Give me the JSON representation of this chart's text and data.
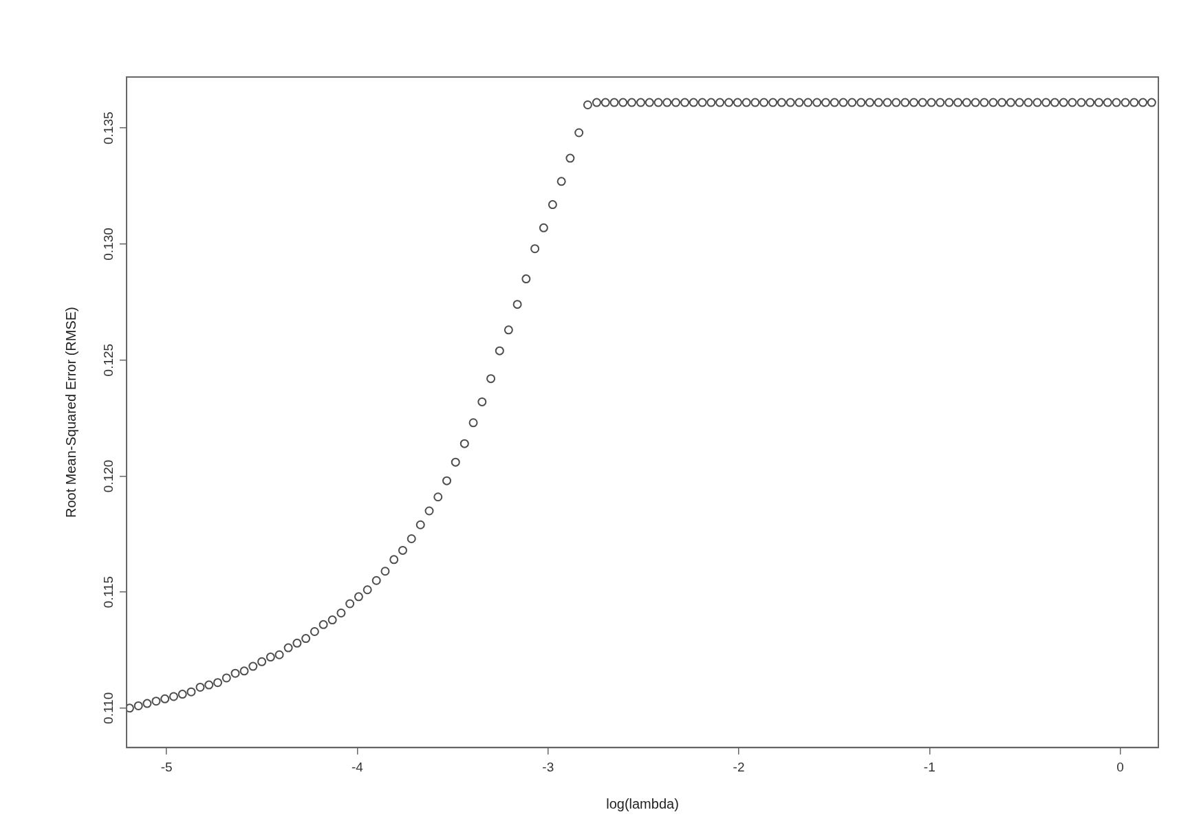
{
  "chart_data": {
    "type": "scatter",
    "xlabel": "log(lambda)",
    "ylabel": "Root Mean-Squared Error (RMSE)",
    "xlim": [
      -5.21,
      0.2
    ],
    "ylim": [
      0.1083,
      0.1372
    ],
    "xticks": [
      -5,
      -4,
      -3,
      -2,
      -1,
      0
    ],
    "yticks": [
      {
        "value": 0.11,
        "label": "0.110"
      },
      0.115,
      {
        "value": 0.12,
        "label": "0.120"
      },
      0.125,
      {
        "value": 0.13,
        "label": "0.130"
      },
      0.135
    ],
    "grid": false,
    "marker": "circle",
    "color": "#4d4d4d",
    "x": [
      -5.194,
      -5.148,
      -5.102,
      -5.055,
      -5.009,
      -4.963,
      -4.917,
      -4.871,
      -4.824,
      -4.778,
      -4.732,
      -4.686,
      -4.64,
      -4.593,
      -4.547,
      -4.501,
      -4.455,
      -4.409,
      -4.362,
      -4.316,
      -4.27,
      -4.224,
      -4.178,
      -4.131,
      -4.085,
      -4.039,
      -3.993,
      -3.947,
      -3.9,
      -3.854,
      -3.808,
      -3.762,
      -3.716,
      -3.669,
      -3.623,
      -3.577,
      -3.531,
      -3.485,
      -3.438,
      -3.392,
      -3.346,
      -3.3,
      -3.254,
      -3.207,
      -3.161,
      -3.115,
      -3.069,
      -3.023,
      -2.976,
      -2.93,
      -2.884,
      -2.838,
      -2.792,
      -2.745,
      -2.699,
      -2.653,
      -2.607,
      -2.561,
      -2.514,
      -2.468,
      -2.422,
      -2.376,
      -2.33,
      -2.283,
      -2.237,
      -2.191,
      -2.145,
      -2.099,
      -2.052,
      -2.006,
      -1.96,
      -1.914,
      -1.868,
      -1.821,
      -1.775,
      -1.729,
      -1.683,
      -1.637,
      -1.59,
      -1.544,
      -1.498,
      -1.452,
      -1.406,
      -1.359,
      -1.313,
      -1.267,
      -1.221,
      -1.175,
      -1.128,
      -1.082,
      -1.036,
      -0.99,
      -0.944,
      -0.897,
      -0.851,
      -0.805,
      -0.759,
      -0.713,
      -0.666,
      -0.62,
      -0.574,
      -0.528,
      -0.482,
      -0.435,
      -0.389,
      -0.343,
      -0.297,
      -0.251,
      -0.204,
      -0.158,
      -0.112,
      -0.066,
      -0.02,
      0.027,
      0.073,
      0.119,
      0.165
    ],
    "values": [
      0.11,
      0.1101,
      0.1102,
      0.1103,
      0.1104,
      0.1105,
      0.1106,
      0.1107,
      0.1109,
      0.111,
      0.1111,
      0.1113,
      0.1115,
      0.1116,
      0.1118,
      0.112,
      0.1122,
      0.1123,
      0.1126,
      0.1128,
      0.113,
      0.1133,
      0.1136,
      0.1138,
      0.1141,
      0.1145,
      0.1148,
      0.1151,
      0.1155,
      0.1159,
      0.1164,
      0.1168,
      0.1173,
      0.1179,
      0.1185,
      0.1191,
      0.1198,
      0.1206,
      0.1214,
      0.1223,
      0.1232,
      0.1242,
      0.1254,
      0.1263,
      0.1274,
      0.1285,
      0.1298,
      0.1307,
      0.1317,
      0.1327,
      0.1337,
      0.1348,
      0.136,
      0.1361,
      0.1361,
      0.1361,
      0.1361,
      0.1361,
      0.1361,
      0.1361,
      0.1361,
      0.1361,
      0.1361,
      0.1361,
      0.1361,
      0.1361,
      0.1361,
      0.1361,
      0.1361,
      0.1361,
      0.1361,
      0.1361,
      0.1361,
      0.1361,
      0.1361,
      0.1361,
      0.1361,
      0.1361,
      0.1361,
      0.1361,
      0.1361,
      0.1361,
      0.1361,
      0.1361,
      0.1361,
      0.1361,
      0.1361,
      0.1361,
      0.1361,
      0.1361,
      0.1361,
      0.1361,
      0.1361,
      0.1361,
      0.1361,
      0.1361,
      0.1361,
      0.1361,
      0.1361,
      0.1361,
      0.1361,
      0.1361,
      0.1361,
      0.1361,
      0.1361,
      0.1361,
      0.1361,
      0.1361,
      0.1361,
      0.1361,
      0.1361,
      0.1361,
      0.1361,
      0.1361,
      0.1361,
      0.1361,
      0.1361
    ]
  }
}
